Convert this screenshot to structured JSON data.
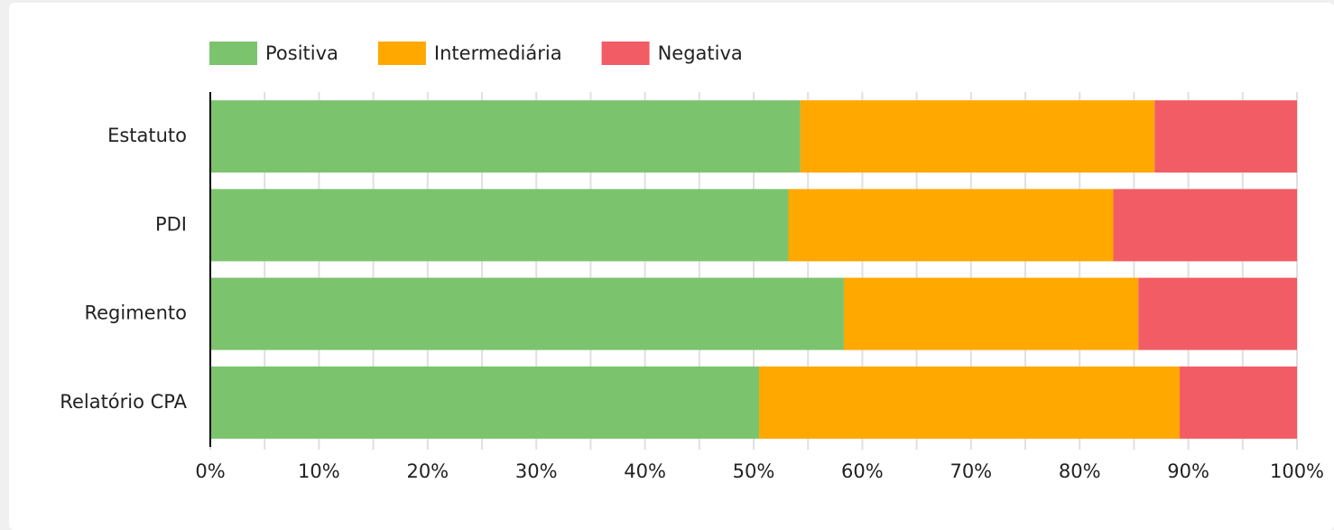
{
  "chart_data": {
    "type": "stacked_bar_horizontal",
    "categories": [
      "Estatuto",
      "PDI",
      "Regimento",
      "Relatório CPA"
    ],
    "series": [
      {
        "name": "Positiva",
        "color": "#7cc36e",
        "values": [
          54.3,
          53.2,
          58.3,
          50.5
        ]
      },
      {
        "name": "Intermediária",
        "color": "#ffa800",
        "values": [
          32.6,
          29.9,
          27.1,
          38.7
        ]
      },
      {
        "name": "Negativa",
        "color": "#f25c64",
        "values": [
          13.1,
          16.9,
          14.6,
          10.8
        ]
      }
    ],
    "xlim": [
      0,
      100
    ],
    "xticks": [
      {
        "value": 0,
        "label": "0%"
      },
      {
        "value": 10,
        "label": "10%"
      },
      {
        "value": 20,
        "label": "20%"
      },
      {
        "value": 30,
        "label": "30%"
      },
      {
        "value": 40,
        "label": "40%"
      },
      {
        "value": 50,
        "label": "50%"
      },
      {
        "value": 60,
        "label": "60%"
      },
      {
        "value": 70,
        "label": "70%"
      },
      {
        "value": 80,
        "label": "80%"
      },
      {
        "value": 90,
        "label": "90%"
      },
      {
        "value": 100,
        "label": "100%"
      }
    ],
    "xminor": [
      5,
      15,
      25,
      35,
      45,
      55,
      65,
      75,
      85,
      95
    ],
    "grid": true,
    "legend": "top"
  }
}
